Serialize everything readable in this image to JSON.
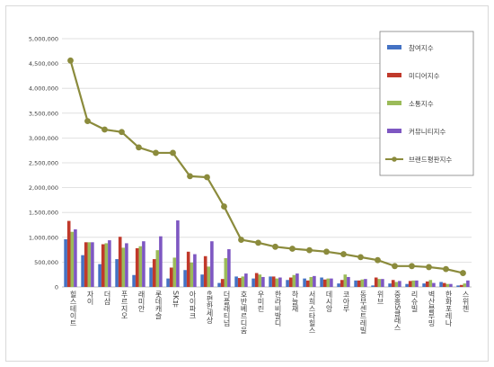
{
  "chart_data": {
    "type": "bar",
    "title": "",
    "xlabel": "",
    "ylabel": "",
    "ylim": [
      0,
      5000000
    ],
    "yticks": [
      "0",
      "500,000",
      "1,000,000",
      "1,500,000",
      "2,000,000",
      "2,500,000",
      "3,000,000",
      "3,500,000",
      "4,000,000",
      "4,500,000",
      "5,000,000"
    ],
    "grid": true,
    "legend_position": "right",
    "categories": [
      "힐스테이트",
      "자이",
      "더샵",
      "푸르지오",
      "래미안",
      "롯데캐슬",
      "SK뷰",
      "아이파크",
      "e편한세상",
      "더플래티넘",
      "호반베르디움",
      "우미린",
      "한라비발디",
      "하늘채",
      "서희스타힐스",
      "데시앙",
      "코아루",
      "동부센트레빌",
      "위브",
      "중흥S클래스",
      "리슈빌",
      "벽산블루밍",
      "한화포레나",
      "스위첸"
    ],
    "series": [
      {
        "name": "참여지수",
        "type": "bar",
        "color": "#4472C4",
        "values": [
          960000,
          640000,
          460000,
          560000,
          240000,
          390000,
          170000,
          340000,
          250000,
          80000,
          210000,
          170000,
          210000,
          140000,
          170000,
          190000,
          70000,
          130000,
          30000,
          70000,
          60000,
          70000,
          100000,
          30000
        ]
      },
      {
        "name": "미디어지수",
        "type": "bar",
        "color": "#C0392B",
        "values": [
          1330000,
          900000,
          860000,
          1010000,
          780000,
          560000,
          390000,
          710000,
          620000,
          160000,
          180000,
          280000,
          210000,
          190000,
          130000,
          150000,
          140000,
          130000,
          190000,
          140000,
          120000,
          110000,
          80000,
          40000
        ]
      },
      {
        "name": "소통지수",
        "type": "bar",
        "color": "#9BBB59",
        "values": [
          1110000,
          900000,
          880000,
          790000,
          820000,
          740000,
          590000,
          490000,
          410000,
          580000,
          210000,
          250000,
          170000,
          240000,
          200000,
          170000,
          250000,
          150000,
          160000,
          100000,
          130000,
          140000,
          60000,
          70000
        ]
      },
      {
        "name": "커뮤니티지수",
        "type": "bar",
        "color": "#7E57C2",
        "values": [
          1160000,
          900000,
          940000,
          880000,
          920000,
          1020000,
          1340000,
          660000,
          920000,
          760000,
          270000,
          200000,
          190000,
          270000,
          220000,
          170000,
          200000,
          160000,
          160000,
          120000,
          130000,
          80000,
          60000,
          130000
        ]
      },
      {
        "name": "브랜드평판지수",
        "type": "line",
        "color": "#8B8B3C",
        "values": [
          4560000,
          3340000,
          3170000,
          3120000,
          2810000,
          2700000,
          2700000,
          2230000,
          2210000,
          1620000,
          950000,
          890000,
          810000,
          770000,
          740000,
          710000,
          660000,
          600000,
          540000,
          420000,
          420000,
          400000,
          360000,
          280000
        ]
      }
    ]
  }
}
